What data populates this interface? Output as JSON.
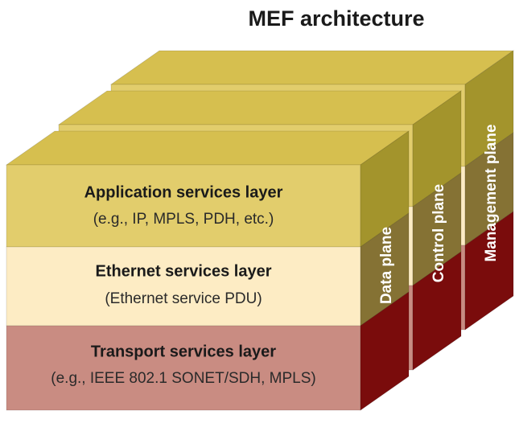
{
  "title": "MEF architecture",
  "layers": [
    {
      "name": "Application services layer",
      "example": "(e.g., IP, MPLS, PDH, etc.)"
    },
    {
      "name": "Ethernet services layer",
      "example": "(Ethernet service PDU)"
    },
    {
      "name": "Transport services layer",
      "example": "(e.g., IEEE 802.1 SONET/SDH, MPLS)"
    }
  ],
  "planes": [
    "Data plane",
    "Control plane",
    "Management plane"
  ]
}
